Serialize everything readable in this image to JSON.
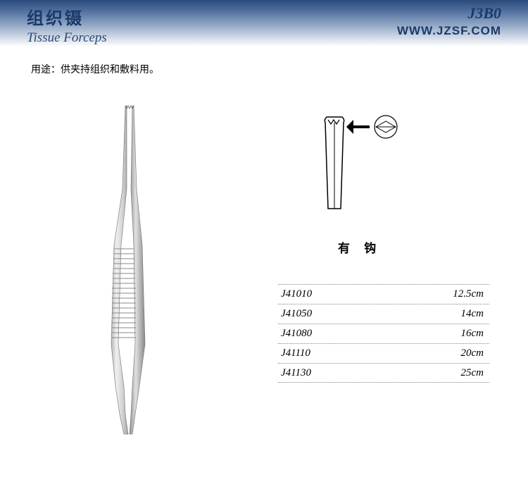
{
  "header": {
    "title_cn": "组织镊",
    "title_en": "Tissue  Forceps",
    "code": "J3B0",
    "url": "WWW.JZSF.COM"
  },
  "usage": {
    "label": "用途：",
    "text": "供夹持组织和敷料用。"
  },
  "tip_label": "有 钩",
  "specs": [
    {
      "code": "J41010",
      "size": "12.5cm"
    },
    {
      "code": "J41050",
      "size": "14cm"
    },
    {
      "code": "J41080",
      "size": "16cm"
    },
    {
      "code": "J41110",
      "size": "20cm"
    },
    {
      "code": "J41130",
      "size": "25cm"
    }
  ],
  "colors": {
    "header_dark": "#2a4a7a",
    "header_light": "#8aa0c0",
    "text_blue": "#1a3a6a",
    "dotted": "#888888",
    "instrument_fill": "#d8d8d8",
    "instrument_stroke": "#707070"
  }
}
